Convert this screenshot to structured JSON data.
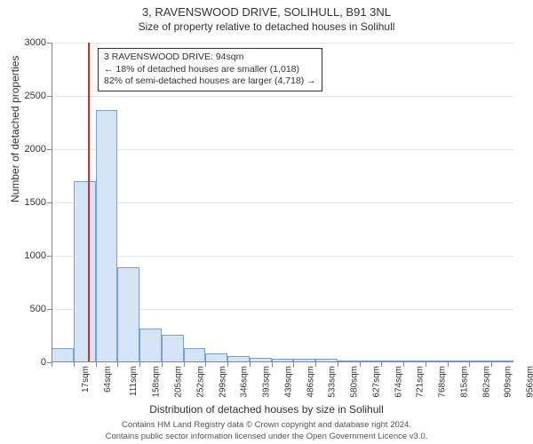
{
  "title": "3, RAVENSWOOD DRIVE, SOLIHULL, B91 3NL",
  "subtitle": "Size of property relative to detached houses in Solihull",
  "chart": {
    "type": "histogram",
    "background_color": "#ffffff",
    "grid_color": "#e6e6e6",
    "bar_fill": "#d6e4f7",
    "bar_stroke": "#7a9fd4",
    "reference_line_color": "#d03030",
    "reference_value_sqm": 94,
    "xlabel": "Distribution of detached houses by size in Solihull",
    "ylabel": "Number of detached properties",
    "ylim": [
      0,
      3000
    ],
    "ytick_step": 500,
    "yticks": [
      0,
      500,
      1000,
      1500,
      2000,
      2500,
      3000
    ],
    "x_bin_start": 17,
    "x_bin_width": 47,
    "x_bin_count": 21,
    "xtick_labels": [
      "17sqm",
      "64sqm",
      "111sqm",
      "158sqm",
      "205sqm",
      "252sqm",
      "299sqm",
      "346sqm",
      "393sqm",
      "439sqm",
      "486sqm",
      "533sqm",
      "580sqm",
      "627sqm",
      "674sqm",
      "721sqm",
      "768sqm",
      "815sqm",
      "862sqm",
      "909sqm",
      "956sqm"
    ],
    "values": [
      130,
      1700,
      2370,
      890,
      320,
      260,
      130,
      85,
      55,
      40,
      35,
      35,
      30,
      3,
      3,
      3,
      2,
      2,
      2,
      2,
      2
    ],
    "label_fontsize": 12,
    "tick_fontsize": 11
  },
  "annotation": {
    "line1": "3 RAVENSWOOD DRIVE: 94sqm",
    "line2": "← 18% of detached houses are smaller (1,018)",
    "line3": "82% of semi-detached houses are larger (4,718) →"
  },
  "footer": {
    "line1": "Contains HM Land Registry data © Crown copyright and database right 2024.",
    "line2": "Contains public sector information licensed under the Open Government Licence v3.0."
  }
}
